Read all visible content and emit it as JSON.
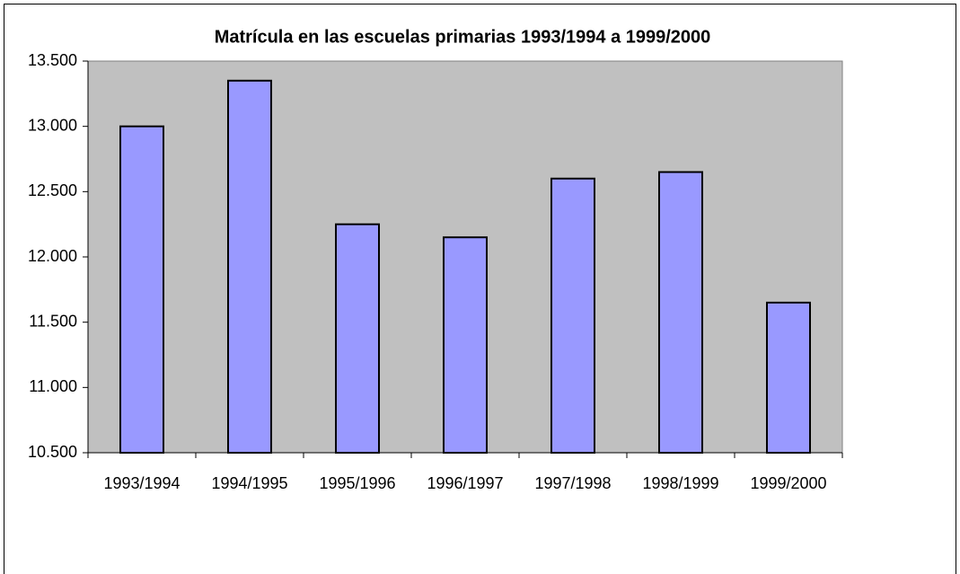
{
  "chart_data": {
    "type": "bar",
    "title": "Matrícula en las escuelas primarias 1993/1994 a 1999/2000",
    "categories": [
      "1993/1994",
      "1994/1995",
      "1995/1996",
      "1996/1997",
      "1997/1998",
      "1998/1999",
      "1999/2000"
    ],
    "values": [
      13000,
      13350,
      12250,
      12150,
      12600,
      12650,
      11650
    ],
    "color": "#9999ff",
    "ylim": [
      10500,
      13500
    ],
    "yticks": [
      {
        "value": 10500,
        "label": "10.500"
      },
      {
        "value": 11000,
        "label": "11.000"
      },
      {
        "value": 11500,
        "label": "11.500"
      },
      {
        "value": 12000,
        "label": "12.000"
      },
      {
        "value": 12500,
        "label": "12.500"
      },
      {
        "value": 13000,
        "label": "13.000"
      },
      {
        "value": 13500,
        "label": "13.500"
      }
    ],
    "grid": false
  }
}
